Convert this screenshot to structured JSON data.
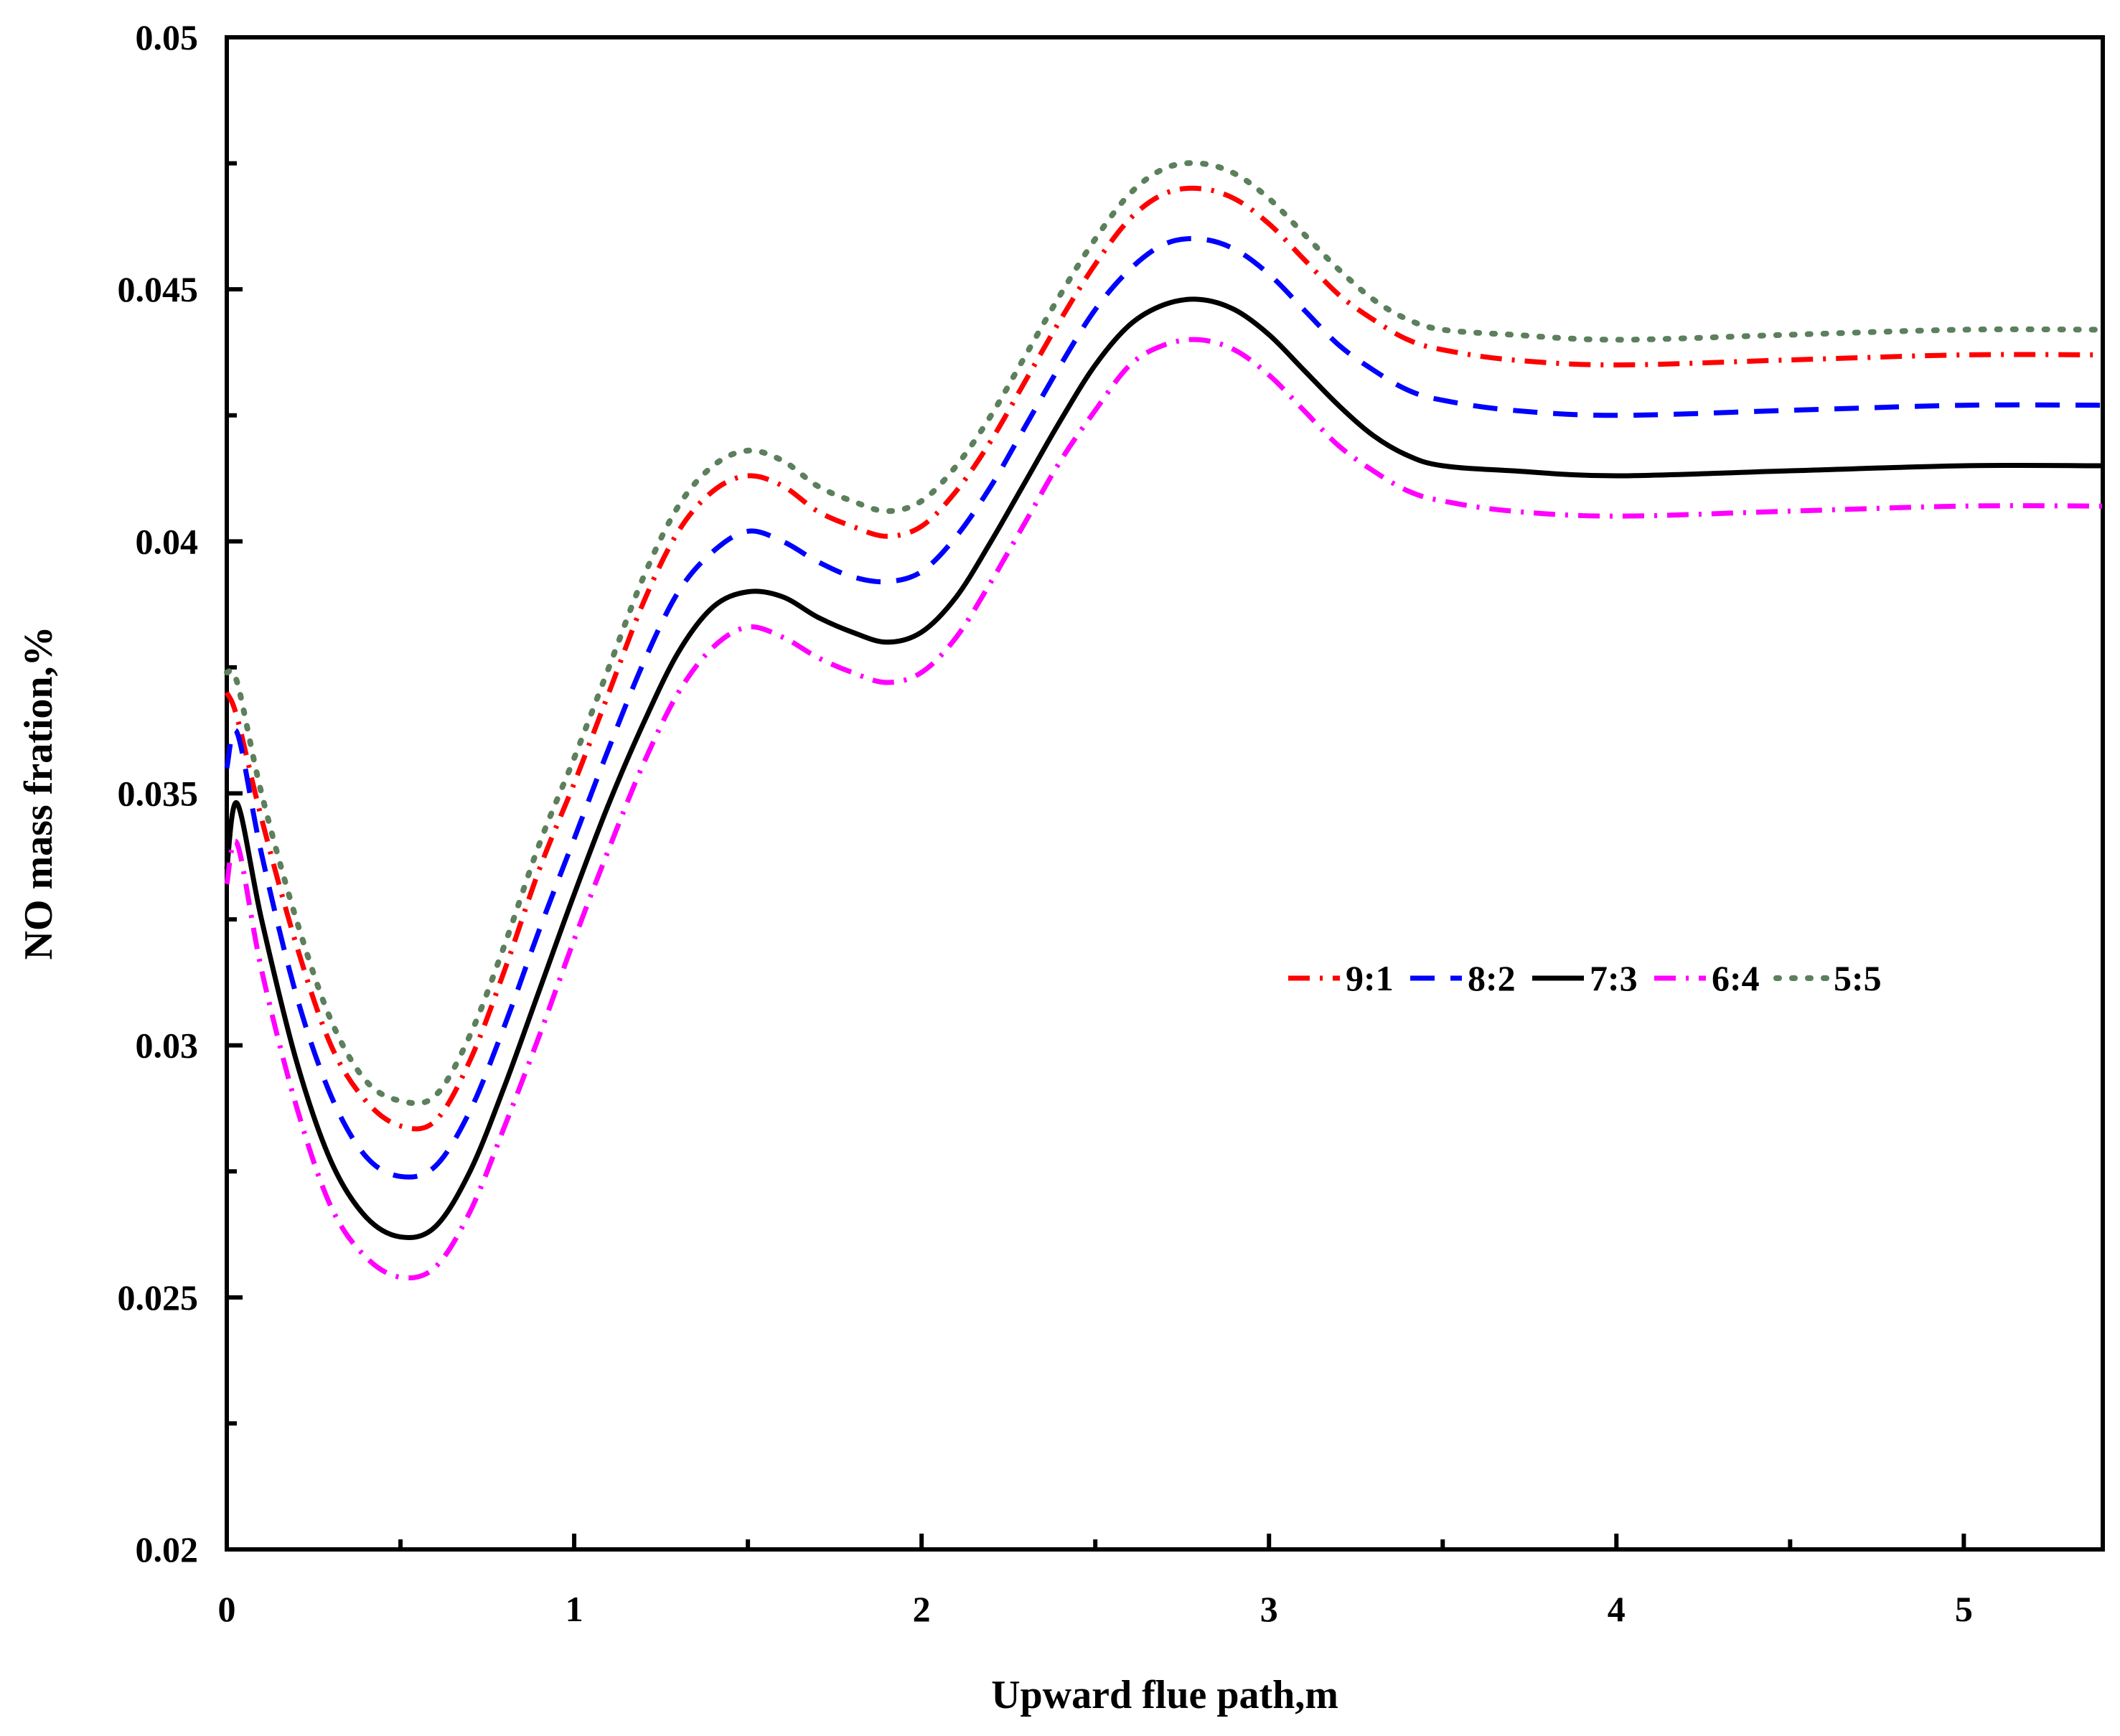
{
  "chart_data": {
    "type": "line",
    "title": "",
    "xlabel": "Upward flue path,m",
    "ylabel": "NO mass fration,%",
    "xlim": [
      0,
      5.4
    ],
    "ylim": [
      0.02,
      0.05
    ],
    "x_ticks": [
      0,
      1,
      2,
      3,
      4,
      5
    ],
    "x_tick_labels": [
      "0",
      "1",
      "2",
      "3",
      "4",
      "5"
    ],
    "y_ticks": [
      0.02,
      0.025,
      0.03,
      0.035,
      0.04,
      0.045,
      0.05
    ],
    "y_tick_labels": [
      "0.02",
      "0.025",
      "0.03",
      "0.035",
      "0.04",
      "0.045",
      "0.05"
    ],
    "grid": false,
    "legend_position": "center-right",
    "x": [
      0.0,
      0.03,
      0.1,
      0.2,
      0.3,
      0.4,
      0.5,
      0.6,
      0.7,
      0.8,
      0.9,
      1.0,
      1.1,
      1.2,
      1.3,
      1.4,
      1.5,
      1.6,
      1.7,
      1.8,
      1.9,
      2.0,
      2.1,
      2.2,
      2.3,
      2.4,
      2.5,
      2.6,
      2.7,
      2.8,
      2.9,
      3.0,
      3.1,
      3.2,
      3.3,
      3.4,
      3.5,
      3.7,
      4.0,
      4.5,
      5.0,
      5.4
    ],
    "series": [
      {
        "name": "9:1",
        "color": "#ff0000",
        "dash": "dash-dot",
        "values": [
          0.037,
          0.0365,
          0.0345,
          0.032,
          0.03,
          0.0289,
          0.0284,
          0.0285,
          0.0297,
          0.0315,
          0.0335,
          0.0352,
          0.037,
          0.0388,
          0.0402,
          0.041,
          0.0413,
          0.0411,
          0.0406,
          0.0403,
          0.0401,
          0.0403,
          0.041,
          0.042,
          0.0432,
          0.0444,
          0.0455,
          0.0464,
          0.0469,
          0.047,
          0.0468,
          0.0463,
          0.0456,
          0.0449,
          0.0444,
          0.044,
          0.0438,
          0.0436,
          0.0435,
          0.0436,
          0.0437,
          0.0437
        ]
      },
      {
        "name": "8:2",
        "color": "#0000ff",
        "dash": "dash",
        "values": [
          0.0355,
          0.0362,
          0.0338,
          0.031,
          0.029,
          0.0278,
          0.0274,
          0.0276,
          0.0287,
          0.0304,
          0.0323,
          0.0341,
          0.0359,
          0.0376,
          0.039,
          0.0398,
          0.0402,
          0.04,
          0.0396,
          0.0393,
          0.0392,
          0.0394,
          0.0401,
          0.0411,
          0.0423,
          0.0435,
          0.0446,
          0.0454,
          0.0459,
          0.046,
          0.0458,
          0.0453,
          0.0446,
          0.0439,
          0.0434,
          0.043,
          0.0428,
          0.0426,
          0.0425,
          0.0426,
          0.0427,
          0.0427
        ]
      },
      {
        "name": "7:3",
        "color": "#000000",
        "dash": "solid",
        "values": [
          0.0335,
          0.0348,
          0.0325,
          0.0297,
          0.0277,
          0.0266,
          0.0262,
          0.0264,
          0.0275,
          0.0292,
          0.0311,
          0.033,
          0.0348,
          0.0364,
          0.0378,
          0.0387,
          0.039,
          0.0389,
          0.0385,
          0.0382,
          0.038,
          0.0382,
          0.0389,
          0.04,
          0.0412,
          0.0424,
          0.0435,
          0.0443,
          0.0447,
          0.0448,
          0.0446,
          0.0441,
          0.0434,
          0.0427,
          0.0421,
          0.0417,
          0.0415,
          0.0414,
          0.0413,
          0.0414,
          0.0415,
          0.0415
        ]
      },
      {
        "name": "6:4",
        "color": "#ff00ff",
        "dash": "dash-dot",
        "values": [
          0.0332,
          0.034,
          0.0315,
          0.0288,
          0.0268,
          0.0258,
          0.0254,
          0.0256,
          0.0267,
          0.0284,
          0.0302,
          0.0321,
          0.0339,
          0.0356,
          0.037,
          0.0379,
          0.0383,
          0.0381,
          0.0377,
          0.0374,
          0.0372,
          0.0374,
          0.0381,
          0.0392,
          0.0404,
          0.0416,
          0.0426,
          0.0435,
          0.0439,
          0.044,
          0.0438,
          0.0433,
          0.0426,
          0.0419,
          0.0414,
          0.041,
          0.0408,
          0.0406,
          0.0405,
          0.0406,
          0.0407,
          0.0407
        ]
      },
      {
        "name": "5:5",
        "color": "#5c7f5c",
        "dash": "dot",
        "values": [
          0.0374,
          0.0372,
          0.035,
          0.0325,
          0.0305,
          0.0293,
          0.0289,
          0.029,
          0.0302,
          0.032,
          0.034,
          0.0357,
          0.0375,
          0.0393,
          0.0407,
          0.0415,
          0.0418,
          0.0416,
          0.0411,
          0.0408,
          0.0406,
          0.0408,
          0.0415,
          0.0425,
          0.0437,
          0.0449,
          0.046,
          0.0469,
          0.0474,
          0.0475,
          0.0473,
          0.0468,
          0.0461,
          0.0454,
          0.0448,
          0.0444,
          0.0442,
          0.0441,
          0.044,
          0.0441,
          0.0442,
          0.0442
        ]
      }
    ]
  }
}
